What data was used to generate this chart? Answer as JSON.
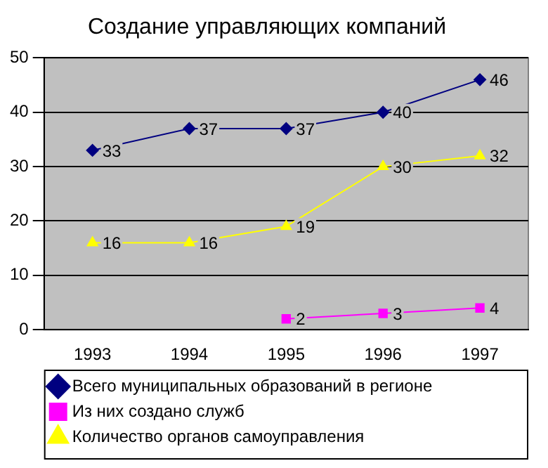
{
  "chart_data": {
    "type": "line",
    "title": "Создание управляющих компаний",
    "categories": [
      "1993",
      "1994",
      "1995",
      "1996",
      "1997"
    ],
    "series": [
      {
        "name": "Всего муниципальных образований в регионе",
        "color": "#000080",
        "marker": "diamond",
        "values": [
          33,
          37,
          37,
          40,
          46
        ]
      },
      {
        "name": "Из них создано служб",
        "color": "#ff00ff",
        "marker": "square",
        "values": [
          null,
          null,
          2,
          3,
          4
        ]
      },
      {
        "name": "Количество органов самоуправления",
        "color": "#ffff00",
        "marker": "triangle",
        "values": [
          16,
          16,
          19,
          30,
          32
        ]
      }
    ],
    "ylim": [
      0,
      50
    ],
    "yticks": [
      0,
      10,
      20,
      30,
      40,
      50
    ],
    "grid": "y",
    "legend": "bottom",
    "data_labels": true
  }
}
